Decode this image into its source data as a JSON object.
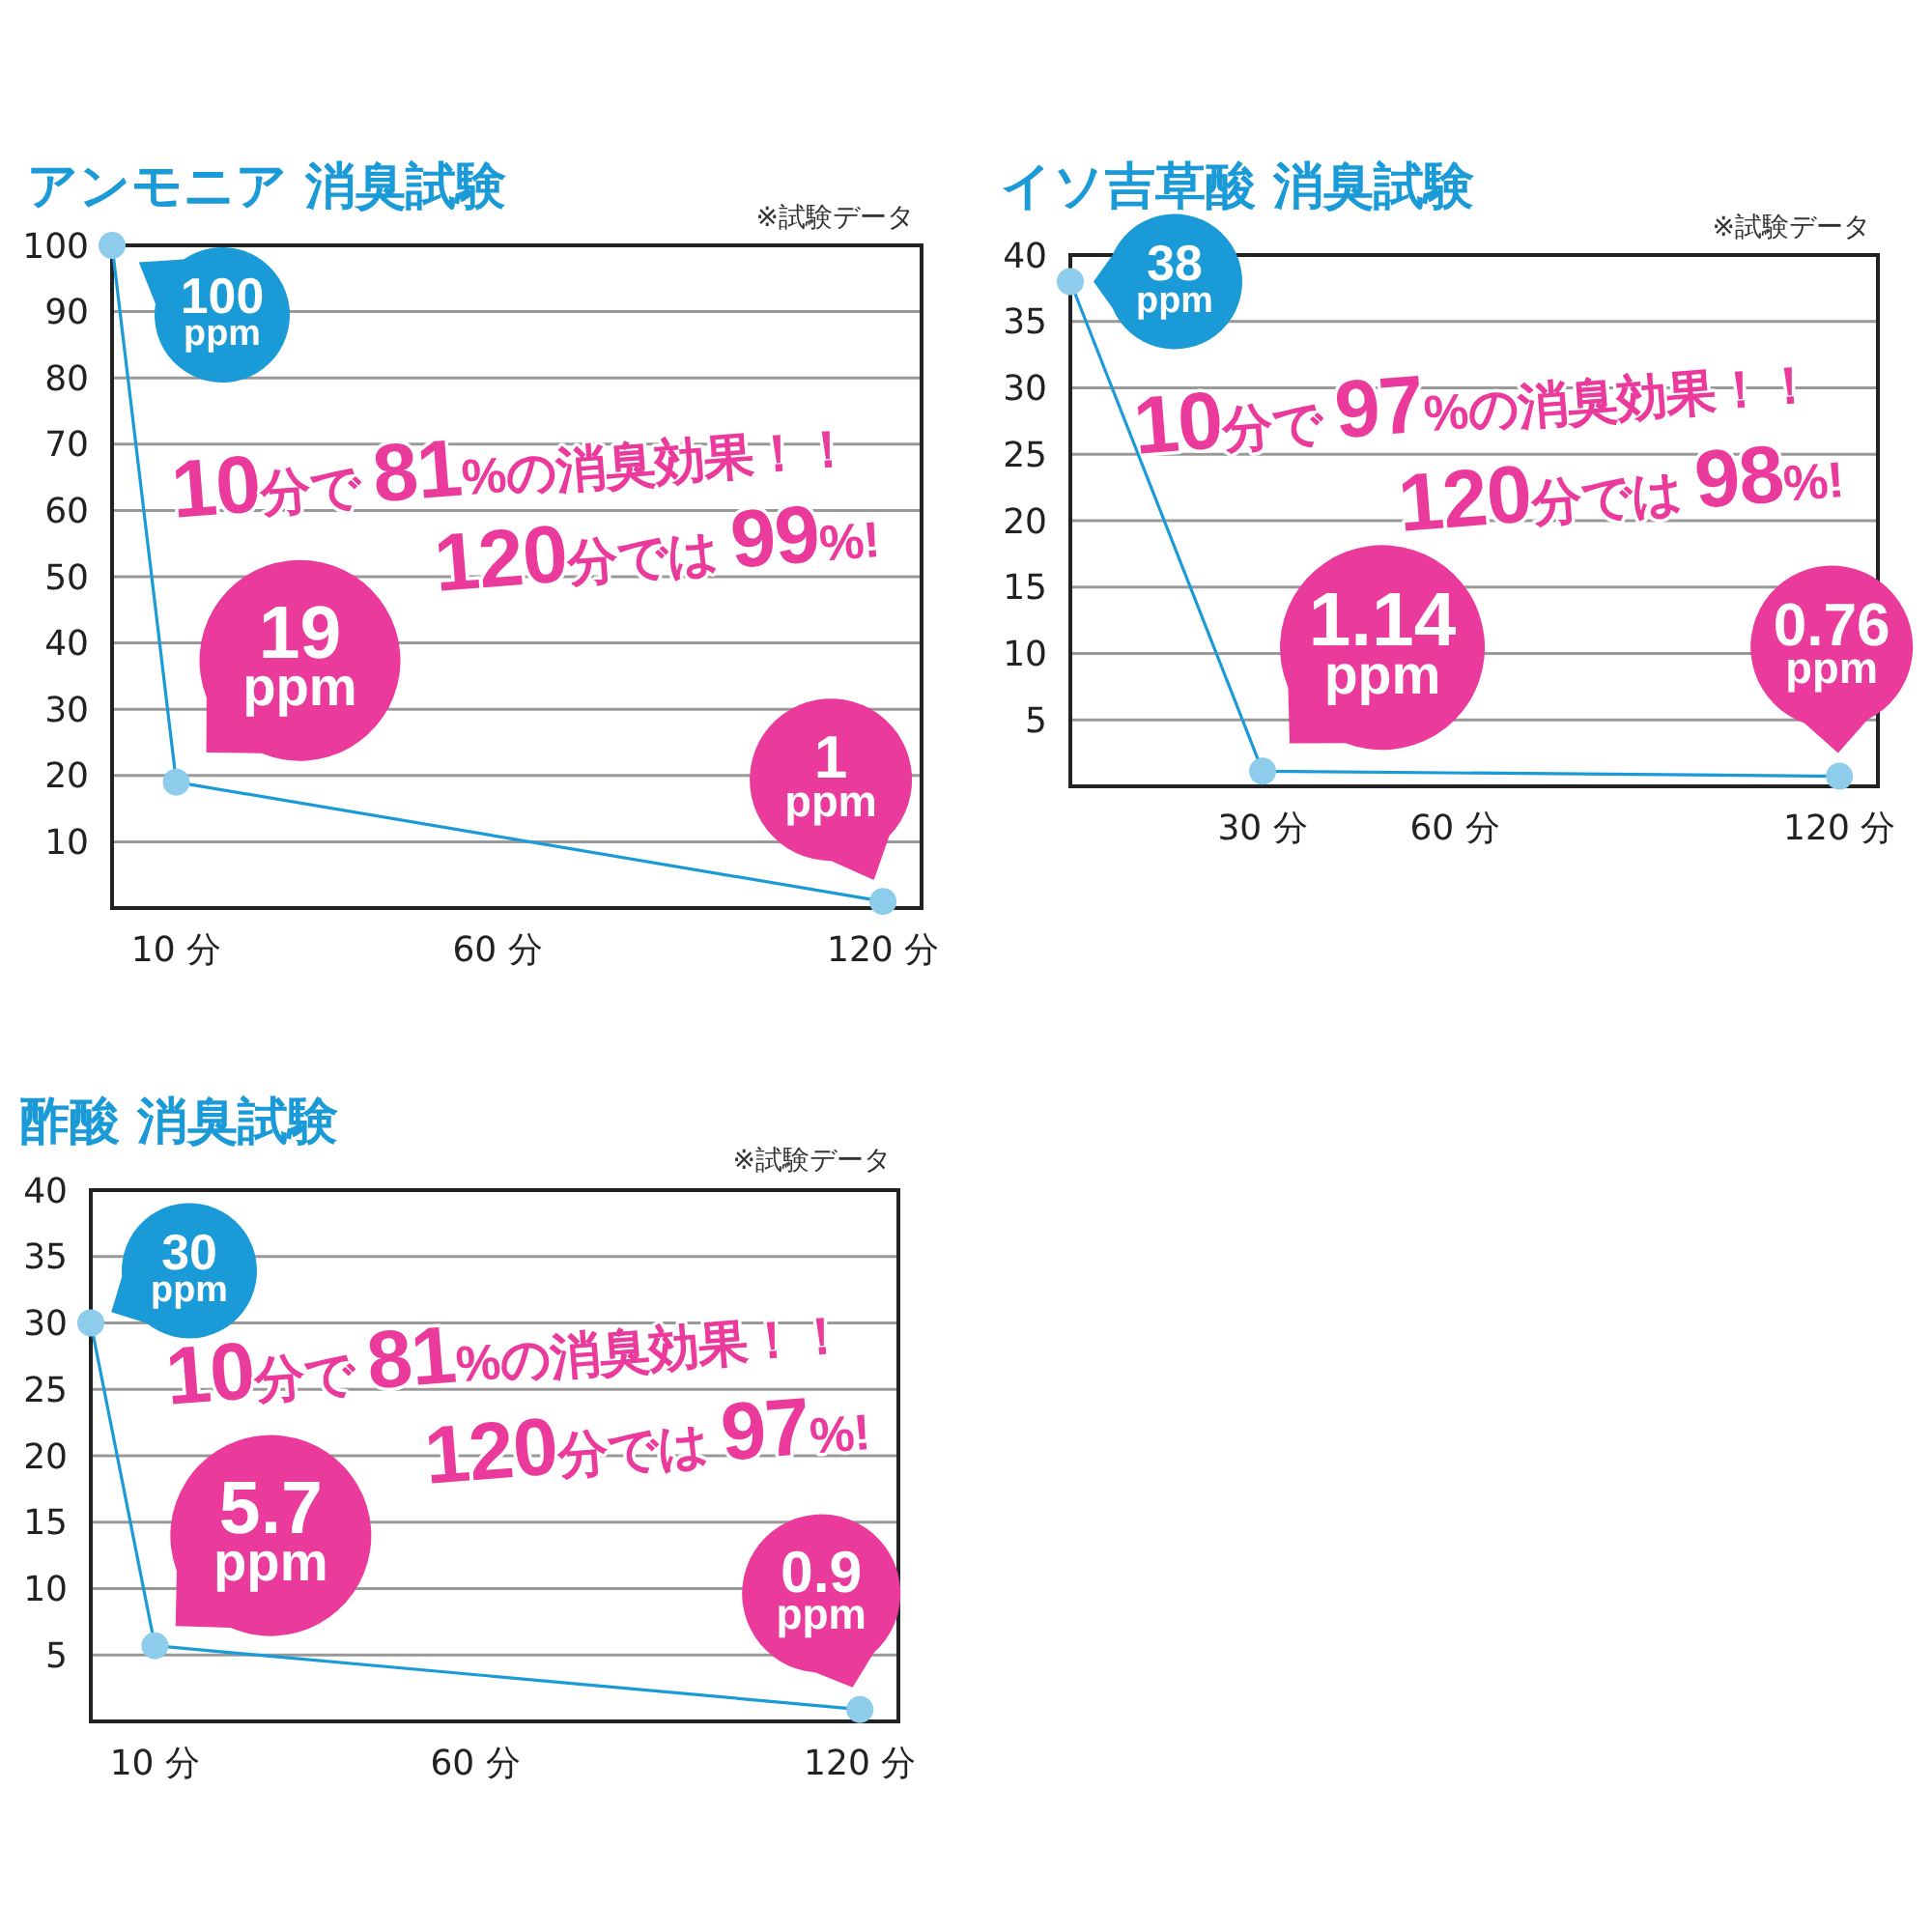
{
  "chart_data": [
    {
      "type": "line",
      "title": "アンモニア 消臭試験",
      "subtitle": "※試験データ",
      "x": [
        0,
        10,
        120
      ],
      "series": [
        {
          "color": "#1a9ad6",
          "values": [
            100,
            19,
            1
          ],
          "value_labels": [
            "100 ppm",
            "19 ppm",
            "1 ppm"
          ]
        }
      ],
      "xlim": [
        0,
        126
      ],
      "xticks": [
        {
          "value": 10,
          "label": "10 分"
        },
        {
          "value": 60,
          "label": "60 分"
        },
        {
          "value": 120,
          "label": "120 分"
        }
      ],
      "ylim": [
        0,
        100
      ],
      "yticks": [
        10,
        20,
        30,
        40,
        50,
        60,
        70,
        80,
        90,
        100
      ],
      "grid": "y",
      "marker": "circle",
      "annotations": [
        "10分で 81%の消臭効果！！",
        "120分では 99%!"
      ]
    },
    {
      "type": "line",
      "title": "イソ吉草酸 消臭試験",
      "subtitle": "※試験データ",
      "x": [
        0,
        30,
        120
      ],
      "series": [
        {
          "color": "#1a9ad6",
          "values": [
            38,
            1.14,
            0.76
          ],
          "value_labels": [
            "38 ppm",
            "1.14 ppm",
            "0.76 ppm"
          ]
        }
      ],
      "xlim": [
        0,
        126
      ],
      "xticks": [
        {
          "value": 30,
          "label": "30 分"
        },
        {
          "value": 60,
          "label": "60 分"
        },
        {
          "value": 120,
          "label": "120 分"
        }
      ],
      "ylim": [
        0,
        40
      ],
      "yticks": [
        5,
        10,
        15,
        20,
        25,
        30,
        35,
        40
      ],
      "grid": "y",
      "marker": "circle",
      "annotations": [
        "10分で 97%の消臭効果！！",
        "120分では 98%!"
      ]
    },
    {
      "type": "line",
      "title": "酢酸 消臭試験",
      "subtitle": "※試験データ",
      "x": [
        0,
        10,
        120
      ],
      "series": [
        {
          "color": "#1a9ad6",
          "values": [
            30,
            5.7,
            0.9
          ],
          "value_labels": [
            "30 ppm",
            "5.7 ppm",
            "0.9 ppm"
          ]
        }
      ],
      "xlim": [
        0,
        126
      ],
      "xticks": [
        {
          "value": 10,
          "label": "10 分"
        },
        {
          "value": 60,
          "label": "60 分"
        },
        {
          "value": 120,
          "label": "120 分"
        }
      ],
      "ylim": [
        0,
        40
      ],
      "yticks": [
        5,
        10,
        15,
        20,
        25,
        30,
        35,
        40
      ],
      "grid": "y",
      "marker": "circle",
      "annotations": [
        "10分で 81%の消臭効果！！",
        "120分では 97%!"
      ]
    }
  ]
}
